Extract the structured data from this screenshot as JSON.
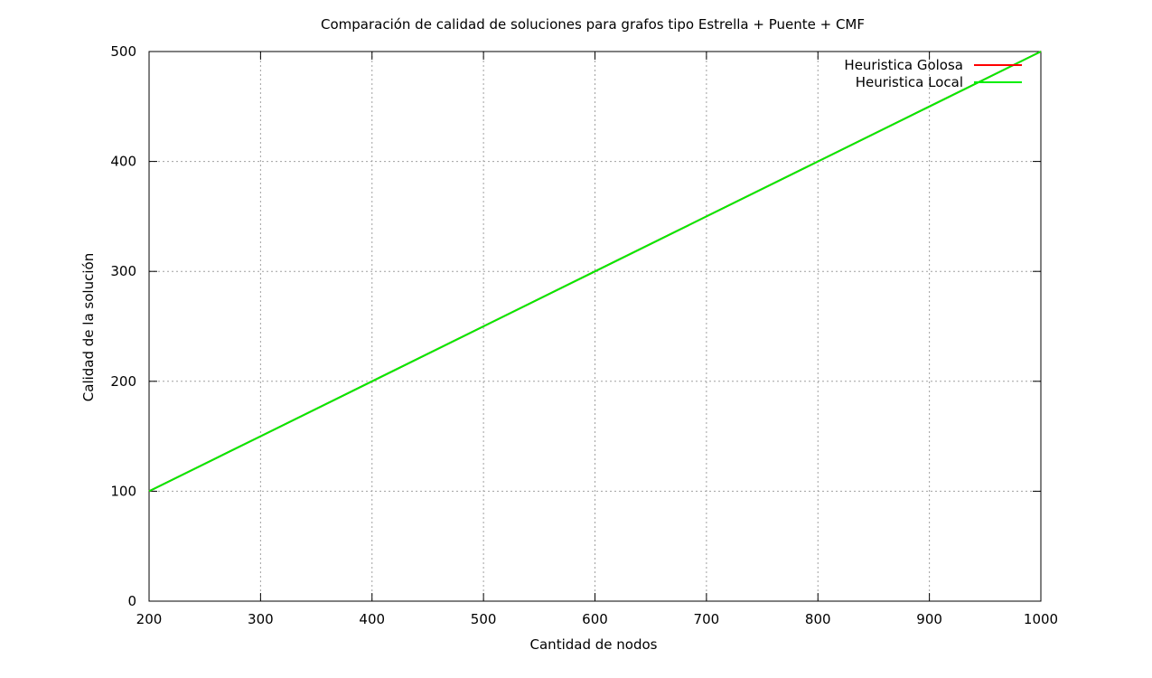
{
  "chart_data": {
    "type": "line",
    "title": "Comparación de calidad de soluciones para grafos tipo Estrella + Puente + CMF",
    "xlabel": "Cantidad de nodos",
    "ylabel": "Calidad de la solución",
    "xlim": [
      200,
      1000
    ],
    "ylim": [
      0,
      500
    ],
    "xticks": [
      200,
      300,
      400,
      500,
      600,
      700,
      800,
      900,
      1000
    ],
    "yticks": [
      0,
      100,
      200,
      300,
      400,
      500
    ],
    "grid": true,
    "legend_position": "top-right",
    "series": [
      {
        "name": "Heuristica Golosa",
        "color": "#ff0000",
        "x": [
          200,
          300,
          400,
          500,
          600,
          700,
          800,
          900,
          1000
        ],
        "y": [
          100,
          150,
          200,
          250,
          300,
          350,
          400,
          450,
          500
        ]
      },
      {
        "name": "Heuristica Local",
        "color": "#00ee00",
        "x": [
          200,
          300,
          400,
          500,
          600,
          700,
          800,
          900,
          1000
        ],
        "y": [
          100,
          150,
          200,
          250,
          300,
          350,
          400,
          450,
          500
        ]
      }
    ]
  }
}
